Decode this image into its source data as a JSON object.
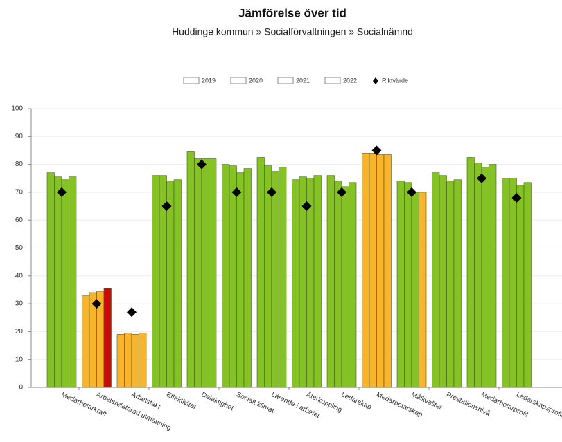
{
  "chart_data": {
    "type": "bar",
    "title": "Jämförelse över tid",
    "subtitle": "Huddinge  kommun  » Socialförvaltningen » Socialnämnd",
    "categories": [
      "Medarbetarkraft",
      "Arbetsrelaterad utmattning",
      "Arbetstakt",
      "Effektivitet",
      "Delaktighet",
      "Socialt klimat",
      "Lärande i arbetet",
      "Återkoppling",
      "Ledarskap",
      "Medarbetarskap",
      "Målkvalitet",
      "Prestationsnivå",
      "Medarbetarprofil",
      "Ledarskapsprofil"
    ],
    "series": [
      {
        "name": "2019",
        "values": [
          77,
          33,
          19,
          76,
          84.5,
          80,
          82.5,
          74.5,
          76,
          84,
          74,
          77,
          82.5,
          75
        ],
        "colors": [
          "#84c225",
          "#f8b42c",
          "#f8b42c",
          "#84c225",
          "#84c225",
          "#84c225",
          "#84c225",
          "#84c225",
          "#84c225",
          "#f8b42c",
          "#84c225",
          "#84c225",
          "#84c225",
          "#84c225"
        ]
      },
      {
        "name": "2020",
        "values": [
          75.5,
          34,
          19.5,
          76,
          82,
          79.5,
          79.5,
          75.5,
          74,
          84,
          73.5,
          76,
          80.5,
          75
        ],
        "colors": [
          "#84c225",
          "#f8b42c",
          "#f8b42c",
          "#84c225",
          "#84c225",
          "#84c225",
          "#84c225",
          "#84c225",
          "#84c225",
          "#f8b42c",
          "#84c225",
          "#84c225",
          "#84c225",
          "#84c225"
        ]
      },
      {
        "name": "2021",
        "values": [
          74.5,
          34.5,
          19,
          74,
          82,
          77,
          77.5,
          75,
          72,
          83.5,
          70,
          74,
          79,
          72.5
        ],
        "colors": [
          "#84c225",
          "#f8b42c",
          "#f8b42c",
          "#84c225",
          "#84c225",
          "#84c225",
          "#84c225",
          "#84c225",
          "#84c225",
          "#f8b42c",
          "#84c225",
          "#84c225",
          "#84c225",
          "#84c225"
        ]
      },
      {
        "name": "2022",
        "values": [
          75.5,
          35.5,
          19.5,
          74.5,
          82,
          78.5,
          79,
          76,
          73.5,
          83.5,
          70,
          74.5,
          80,
          73.5
        ],
        "colors": [
          "#84c225",
          "#cc0a0a",
          "#f8b42c",
          "#84c225",
          "#84c225",
          "#84c225",
          "#84c225",
          "#84c225",
          "#84c225",
          "#f8b42c",
          "#f8b42c",
          "#84c225",
          "#84c225",
          "#84c225"
        ]
      }
    ],
    "target": {
      "name": "Riktvärde",
      "values": [
        70,
        30,
        27,
        65,
        80,
        70,
        70,
        65,
        70,
        85,
        70,
        null,
        75,
        68
      ],
      "color": "#000000"
    },
    "ylim": [
      0,
      100
    ],
    "yticks": [
      0,
      10,
      20,
      30,
      40,
      50,
      60,
      70,
      80,
      90,
      100
    ],
    "grid": true
  }
}
